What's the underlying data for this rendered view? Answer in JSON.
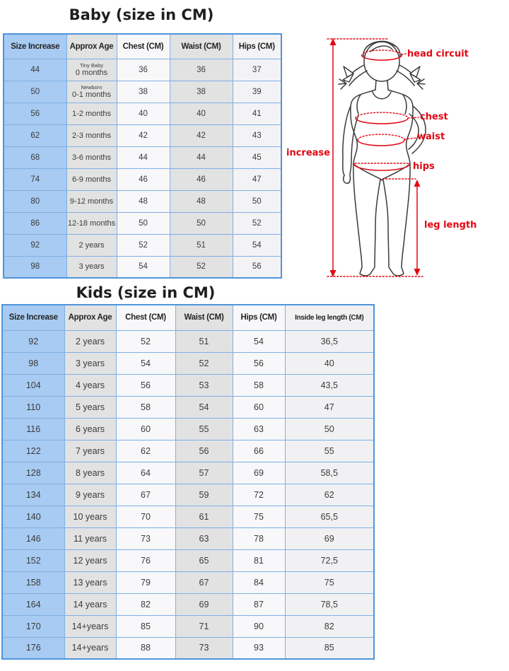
{
  "baby_section": {
    "title": "Baby (size in CM)",
    "table": {
      "headers": [
        "Size Increase",
        "Approx Age",
        "Chest (CM)",
        "Waist (CM)",
        "Hips (CM)"
      ],
      "rows": [
        [
          "44",
          {
            "small": "Tiny Baby",
            "main": "0 months"
          },
          "36",
          "36",
          "37"
        ],
        [
          "50",
          {
            "small": "Newborn",
            "main": "0-1 months"
          },
          "38",
          "38",
          "39"
        ],
        [
          "56",
          "1-2 months",
          "40",
          "40",
          "41"
        ],
        [
          "62",
          "2-3 months",
          "42",
          "42",
          "43"
        ],
        [
          "68",
          "3-6 months",
          "44",
          "44",
          "45"
        ],
        [
          "74",
          "6-9 months",
          "46",
          "46",
          "47"
        ],
        [
          "80",
          "9-12 months",
          "48",
          "48",
          "50"
        ],
        [
          "86",
          "12-18 months",
          "50",
          "50",
          "52"
        ],
        [
          "92",
          "2 years",
          "52",
          "51",
          "54"
        ],
        [
          "98",
          "3 years",
          "54",
          "52",
          "56"
        ]
      ]
    }
  },
  "kids_section": {
    "title": "Kids (size in CM)",
    "table": {
      "headers": [
        "Size Increase",
        "Approx Age",
        "Chest (CM)",
        "Waist (CM)",
        "Hips (CM)",
        "Inside leg length (CM)"
      ],
      "rows": [
        [
          "92",
          "2 years",
          "52",
          "51",
          "54",
          "36,5"
        ],
        [
          "98",
          "3 years",
          "54",
          "52",
          "56",
          "40"
        ],
        [
          "104",
          "4 years",
          "56",
          "53",
          "58",
          "43,5"
        ],
        [
          "110",
          "5 years",
          "58",
          "54",
          "60",
          "47"
        ],
        [
          "116",
          "6 years",
          "60",
          "55",
          "63",
          "50"
        ],
        [
          "122",
          "7 years",
          "62",
          "56",
          "66",
          "55"
        ],
        [
          "128",
          "8 years",
          "64",
          "57",
          "69",
          "58,5"
        ],
        [
          "134",
          "9 years",
          "67",
          "59",
          "72",
          "62"
        ],
        [
          "140",
          "10 years",
          "70",
          "61",
          "75",
          "65,5"
        ],
        [
          "146",
          "11 years",
          "73",
          "63",
          "78",
          "69"
        ],
        [
          "152",
          "12 years",
          "76",
          "65",
          "81",
          "72,5"
        ],
        [
          "158",
          "13 years",
          "79",
          "67",
          "84",
          "75"
        ],
        [
          "164",
          "14 years",
          "82",
          "69",
          "87",
          "78,5"
        ],
        [
          "170",
          "14+years",
          "85",
          "71",
          "90",
          "82"
        ],
        [
          "176",
          "14+years",
          "88",
          "73",
          "93",
          "85"
        ]
      ]
    }
  },
  "diagram": {
    "labels": {
      "head_circuit": "head circuit",
      "chest": "chest",
      "waist": "waist",
      "increase": "increase",
      "hips": "hips",
      "leg_length": "leg length"
    }
  },
  "colors": {
    "table_blue": "#a7cbf2",
    "table_gray": "#e2e2e3",
    "table_light": "#f8f8fa",
    "border_blue": "#4e95da",
    "grid_blue": "#7fafe5",
    "annotation_red": "#e30613",
    "figure_stroke": "#3a3a3a",
    "title_color": "#1e1e1e"
  }
}
